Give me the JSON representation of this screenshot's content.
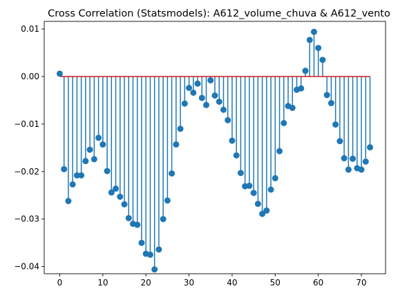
{
  "chart_data": {
    "type": "stem",
    "title": "Cross Correlation (Statsmodels): A612_volume_chuva & A612_vento",
    "xlabel": "",
    "ylabel": "",
    "xlim": [
      -3.6,
      75.6
    ],
    "ylim": [
      -0.0415,
      0.0116
    ],
    "xticks": [
      0,
      10,
      20,
      30,
      40,
      50,
      60,
      70
    ],
    "xtick_labels": [
      "0",
      "10",
      "20",
      "30",
      "40",
      "50",
      "60",
      "70"
    ],
    "yticks": [
      0.01,
      0.0,
      -0.01,
      -0.02,
      -0.03,
      -0.04
    ],
    "ytick_labels": [
      "0.01",
      "0.00",
      "−0.01",
      "−0.02",
      "−0.03",
      "−0.04"
    ],
    "grid": false,
    "baseline": 0,
    "colors": {
      "stem": "#1f77b4",
      "marker": "#1f77b4",
      "baseline": "#d62728"
    },
    "x": [
      0,
      1,
      2,
      3,
      4,
      5,
      6,
      7,
      8,
      9,
      10,
      11,
      12,
      13,
      14,
      15,
      16,
      17,
      18,
      19,
      20,
      21,
      22,
      23,
      24,
      25,
      26,
      27,
      28,
      29,
      30,
      31,
      32,
      33,
      34,
      35,
      36,
      37,
      38,
      39,
      40,
      41,
      42,
      43,
      44,
      45,
      46,
      47,
      48,
      49,
      50,
      51,
      52,
      53,
      54,
      55,
      56,
      57,
      58,
      59,
      60,
      61,
      62,
      63,
      64,
      65,
      66,
      67,
      68,
      69,
      70,
      71,
      72
    ],
    "values": [
      0.0006,
      -0.0195,
      -0.0262,
      -0.0227,
      -0.0208,
      -0.0208,
      -0.0178,
      -0.0154,
      -0.0174,
      -0.0129,
      -0.0143,
      -0.0199,
      -0.0244,
      -0.0236,
      -0.0253,
      -0.0269,
      -0.0298,
      -0.031,
      -0.0312,
      -0.035,
      -0.0373,
      -0.0375,
      -0.0406,
      -0.0364,
      -0.03,
      -0.0261,
      -0.0204,
      -0.0143,
      -0.011,
      -0.0057,
      -0.0024,
      -0.0034,
      -0.0015,
      -0.0045,
      -0.006,
      -0.0008,
      -0.004,
      -0.0053,
      -0.007,
      -0.0092,
      -0.0135,
      -0.0166,
      -0.0203,
      -0.0231,
      -0.023,
      -0.0245,
      -0.0268,
      -0.0289,
      -0.0282,
      -0.0238,
      -0.0214,
      -0.0157,
      -0.0098,
      -0.0062,
      -0.0066,
      -0.0028,
      -0.0025,
      0.0012,
      0.0077,
      0.0094,
      0.006,
      0.0035,
      -0.0039,
      -0.0056,
      -0.0101,
      -0.0136,
      -0.0172,
      -0.0196,
      -0.0173,
      -0.0193,
      -0.0196,
      -0.0179,
      -0.0149
    ]
  }
}
